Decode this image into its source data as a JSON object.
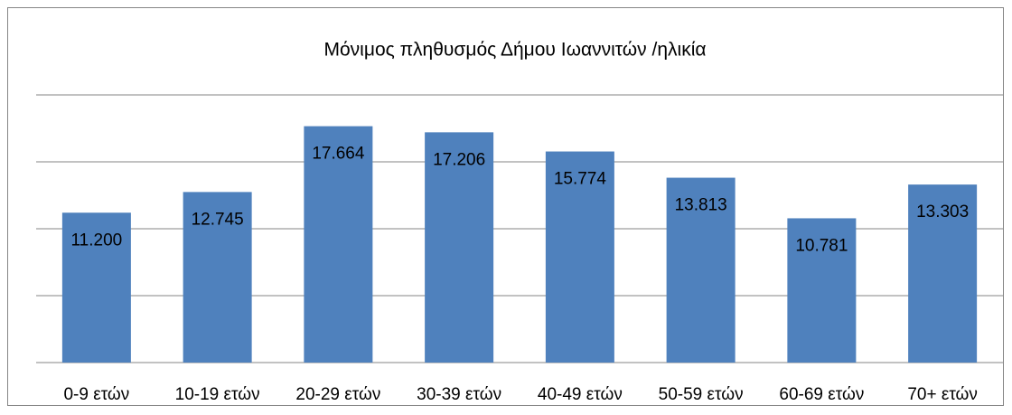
{
  "chart_data": {
    "type": "bar",
    "title": "Μόνιμος πληθυσμός Δήμου  Ιωαννιτών /ηλικία",
    "categories": [
      "0-9  ετών",
      "10-19 ετών",
      "20-29 ετών",
      "30-39 ετών",
      "40-49 ετών",
      "50-59 ετών",
      "60-69 ετών",
      "70+ ετών"
    ],
    "values": [
      11200,
      12745,
      17664,
      17206,
      15774,
      13813,
      10781,
      13303
    ],
    "value_labels": [
      "11.200",
      "12.745",
      "17.664",
      "17.206",
      "15.774",
      "13.813",
      "10.781",
      "13.303"
    ],
    "color": "#4f81bd",
    "ylim": [
      0,
      20000
    ],
    "yticks": [
      0,
      5000,
      10000,
      15000,
      20000
    ],
    "grid": true
  }
}
